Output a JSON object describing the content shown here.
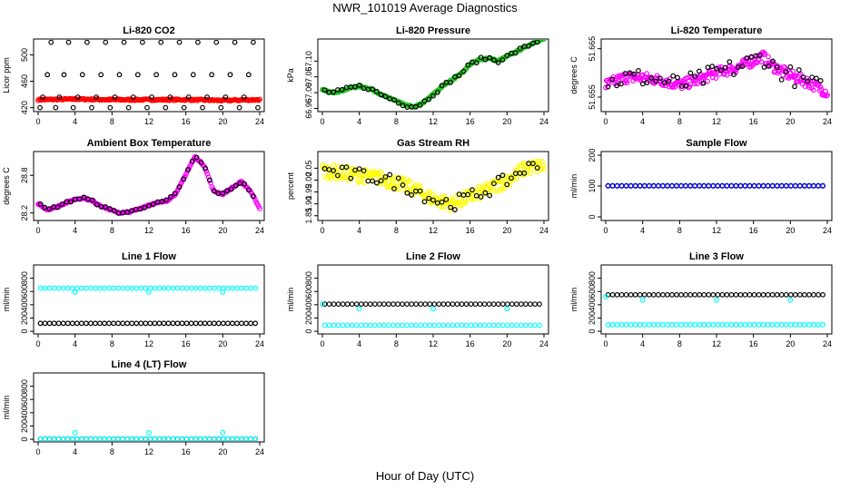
{
  "title": "NWR_101019  Average Diagnostics",
  "xlabel": "Hour of Day (UTC)",
  "x_ticks": [
    "0",
    "4",
    "8",
    "12",
    "16",
    "20",
    "24"
  ],
  "xlim": [
    0,
    24
  ],
  "colors": {
    "red": "#ff0000",
    "green": "#22c022",
    "magenta": "#ff00ff",
    "yellow": "#ffff00",
    "blue": "#0000ff",
    "cyan": "#00ffff",
    "black": "#000000"
  },
  "chart_data": [
    {
      "type": "scatter",
      "title": "Li-820 CO2",
      "ylabel": "Licor ppm",
      "yticks": [
        "420",
        "460",
        "500"
      ],
      "ytick_values": [
        420,
        460,
        500
      ],
      "ylim": [
        414,
        524
      ],
      "series": [
        {
          "color": "red",
          "kind": "band",
          "values": [
            [
              0,
              432
            ],
            [
              4,
              433
            ],
            [
              8,
              432
            ],
            [
              12,
              432
            ],
            [
              16,
              432
            ],
            [
              20,
              431
            ],
            [
              24,
              432
            ]
          ]
        },
        {
          "color": "black",
          "kind": "cycle",
          "levels": [
            420,
            436,
            470,
            519
          ],
          "x": [
            0.2,
            0.5,
            1.0,
            1.4,
            1.9,
            2.3,
            2.8,
            3.3,
            3.8,
            4.3,
            4.8,
            5.3,
            5.8,
            6.3,
            6.8,
            7.3,
            7.8,
            8.3,
            8.8,
            9.3,
            9.8,
            10.3,
            10.8,
            11.3,
            11.8,
            12.3,
            12.8,
            13.3,
            13.8,
            14.3,
            14.8,
            15.3,
            15.8,
            16.3,
            16.8,
            17.3,
            17.8,
            18.3,
            18.8,
            19.3,
            19.8,
            20.3,
            20.8,
            21.3,
            21.8,
            22.3,
            22.8,
            23.3,
            23.8
          ]
        }
      ]
    },
    {
      "type": "scatter",
      "title": "Li-820 Pressure",
      "ylabel": "kPa",
      "yticks": [
        "66.95",
        "67.00",
        "67.05",
        "67.10"
      ],
      "ytick_values": [
        66.95,
        67.0,
        67.05,
        67.1
      ],
      "ylim": [
        66.94,
        67.17
      ],
      "series": [
        {
          "color": "green",
          "kind": "band",
          "values": [
            [
              0,
              67.008
            ],
            [
              1,
              67.0
            ],
            [
              2,
              67.005
            ],
            [
              3,
              67.015
            ],
            [
              4,
              67.02
            ],
            [
              5,
              67.015
            ],
            [
              6,
              67.0
            ],
            [
              7,
              66.985
            ],
            [
              8,
              66.975
            ],
            [
              9,
              66.96
            ],
            [
              10,
              66.955
            ],
            [
              11,
              66.97
            ],
            [
              12,
              66.995
            ],
            [
              13,
              67.02
            ],
            [
              14,
              67.04
            ],
            [
              15,
              67.06
            ],
            [
              16,
              67.09
            ],
            [
              17,
              67.105
            ],
            [
              18,
              67.11
            ],
            [
              19,
              67.1
            ],
            [
              20,
              67.115
            ],
            [
              21,
              67.13
            ],
            [
              22,
              67.145
            ],
            [
              23,
              67.16
            ],
            [
              24,
              67.17
            ]
          ]
        },
        {
          "color": "black",
          "kind": "track",
          "jitter": 0.006
        }
      ]
    },
    {
      "type": "scatter",
      "title": "Li-820 Temperature",
      "ylabel": "degrees C",
      "yticks": [
        "51.655",
        "51.665"
      ],
      "ytick_values": [
        51.655,
        51.665
      ],
      "ylim": [
        51.652,
        51.667
      ],
      "series": [
        {
          "color": "magenta",
          "kind": "band",
          "jitter": 0.0022,
          "values": [
            [
              0,
              51.6575
            ],
            [
              2,
              51.659
            ],
            [
              4,
              51.659
            ],
            [
              6,
              51.6585
            ],
            [
              8,
              51.6575
            ],
            [
              10,
              51.6585
            ],
            [
              12,
              51.66
            ],
            [
              14,
              51.661
            ],
            [
              16,
              51.6625
            ],
            [
              17,
              51.6635
            ],
            [
              18,
              51.6615
            ],
            [
              20,
              51.6595
            ],
            [
              22,
              51.658
            ],
            [
              24,
              51.656
            ]
          ]
        },
        {
          "color": "black",
          "kind": "track",
          "jitter": 0.002
        }
      ]
    },
    {
      "type": "scatter",
      "title": "Ambient Box Temperature",
      "ylabel": "degrees C",
      "yticks": [
        "28.2",
        "28.8"
      ],
      "ytick_values": [
        28.2,
        28.8
      ],
      "ylim": [
        28.08,
        29.18
      ],
      "series": [
        {
          "color": "magenta",
          "kind": "band",
          "values": [
            [
              0,
              28.35
            ],
            [
              1,
              28.25
            ],
            [
              2,
              28.3
            ],
            [
              3,
              28.36
            ],
            [
              4,
              28.42
            ],
            [
              5,
              28.44
            ],
            [
              6,
              28.38
            ],
            [
              7,
              28.3
            ],
            [
              8,
              28.24
            ],
            [
              9,
              28.2
            ],
            [
              10,
              28.22
            ],
            [
              11,
              28.27
            ],
            [
              12,
              28.33
            ],
            [
              13,
              28.36
            ],
            [
              14,
              28.4
            ],
            [
              15,
              28.52
            ],
            [
              16,
              28.82
            ],
            [
              17,
              29.1
            ],
            [
              18,
              28.95
            ],
            [
              19,
              28.55
            ],
            [
              20,
              28.5
            ],
            [
              21,
              28.6
            ],
            [
              22,
              28.7
            ],
            [
              23,
              28.55
            ],
            [
              24,
              28.28
            ]
          ]
        },
        {
          "color": "black",
          "kind": "track",
          "jitter": 0.02
        }
      ]
    },
    {
      "type": "scatter",
      "title": "Gas Stream RH",
      "ylabel": "percent",
      "yticks": [
        "1.85",
        "1.90",
        "1.95",
        "2.00",
        "2.05"
      ],
      "ytick_values": [
        1.85,
        1.9,
        1.95,
        2.0,
        2.05
      ],
      "ylim": [
        1.83,
        2.12
      ],
      "series": [
        {
          "color": "yellow",
          "kind": "band",
          "jitter": 0.06,
          "values": [
            [
              0,
              2.04
            ],
            [
              2,
              2.03
            ],
            [
              4,
              2.02
            ],
            [
              6,
              2.01
            ],
            [
              8,
              1.99
            ],
            [
              10,
              1.96
            ],
            [
              12,
              1.92
            ],
            [
              14,
              1.9
            ],
            [
              16,
              1.93
            ],
            [
              18,
              1.96
            ],
            [
              20,
              2.0
            ],
            [
              22,
              2.05
            ],
            [
              24,
              2.06
            ]
          ]
        },
        {
          "color": "black",
          "kind": "track",
          "jitter": 0.03
        }
      ]
    },
    {
      "type": "scatter",
      "title": "Sample Flow",
      "ylabel": "ml/min",
      "yticks": [
        "0",
        "100",
        "200"
      ],
      "ytick_values": [
        0,
        100,
        200
      ],
      "ylim": [
        -12,
        212
      ],
      "series": [
        {
          "color": "black",
          "kind": "flat",
          "value": 101
        },
        {
          "color": "blue",
          "kind": "flat",
          "value": 100
        }
      ]
    },
    {
      "type": "scatter",
      "title": "Line 1 Flow",
      "ylabel": "ml/min",
      "yticks": [
        "0",
        "200",
        "400",
        "600",
        "800"
      ],
      "ytick_values": [
        0,
        200,
        400,
        600,
        800
      ],
      "ylim": [
        -40,
        1000
      ],
      "series": [
        {
          "color": "cyan",
          "kind": "flat",
          "value": 650,
          "dips": [
            [
              4,
              590
            ],
            [
              12,
              590
            ],
            [
              20,
              590
            ]
          ]
        },
        {
          "color": "black",
          "kind": "flat",
          "value": 120
        }
      ]
    },
    {
      "type": "scatter",
      "title": "Line 2 Flow",
      "ylabel": "ml/min",
      "yticks": [
        "0",
        "200",
        "400",
        "600",
        "800"
      ],
      "ytick_values": [
        0,
        200,
        400,
        600,
        800
      ],
      "ylim": [
        -40,
        1000
      ],
      "series": [
        {
          "color": "black",
          "kind": "flat",
          "value": 410
        },
        {
          "color": "cyan",
          "kind": "flat",
          "value": 90,
          "dips": [
            [
              0,
              410
            ],
            [
              4,
              340
            ],
            [
              12,
              340
            ],
            [
              20,
              340
            ]
          ]
        }
      ]
    },
    {
      "type": "scatter",
      "title": "Line 3 Flow",
      "ylabel": "ml/min",
      "yticks": [
        "0",
        "200",
        "400",
        "600",
        "800"
      ],
      "ytick_values": [
        0,
        200,
        400,
        600,
        800
      ],
      "ylim": [
        -40,
        1000
      ],
      "series": [
        {
          "color": "black",
          "kind": "flat",
          "value": 550
        },
        {
          "color": "cyan",
          "kind": "flat",
          "value": 100,
          "dips": [
            [
              0,
              520
            ],
            [
              4,
              470
            ],
            [
              12,
              470
            ],
            [
              20,
              470
            ]
          ]
        }
      ]
    },
    {
      "type": "scatter",
      "title": "Line 4 (LT) Flow",
      "ylabel": "ml/min",
      "yticks": [
        "0",
        "200",
        "400",
        "600",
        "800"
      ],
      "ytick_values": [
        0,
        200,
        400,
        600,
        800
      ],
      "ylim": [
        -40,
        1000
      ],
      "series": [
        {
          "color": "black",
          "kind": "flat",
          "value": 5
        },
        {
          "color": "cyan",
          "kind": "flat",
          "value": 5,
          "dips": [
            [
              4,
              100
            ],
            [
              12,
              100
            ],
            [
              20,
              100
            ]
          ]
        }
      ]
    }
  ]
}
